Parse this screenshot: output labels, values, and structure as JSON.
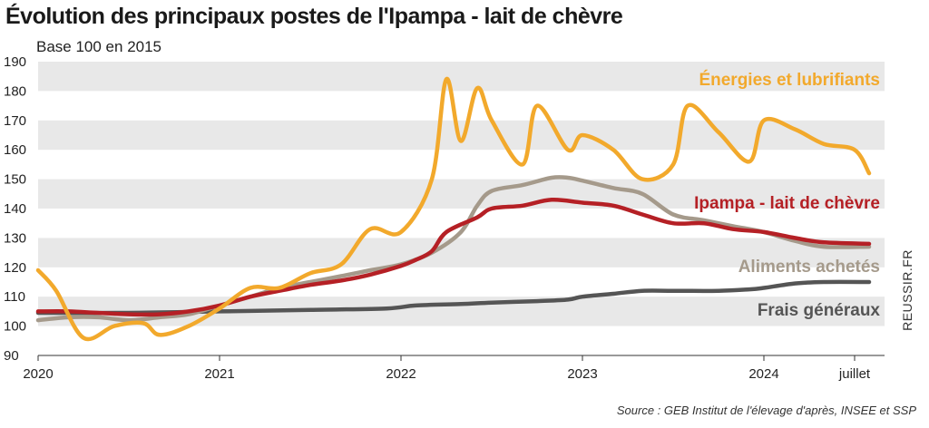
{
  "title": "Évolution des principaux postes de l'Ipampa - lait de chèvre",
  "subtitle": "Base 100 en 2015",
  "credit": "REUSSIR.FR",
  "source": "Source : GEB Institut de l'élevage d'après, INSEE et SSP",
  "chart_data": {
    "type": "line",
    "title": "Évolution des principaux postes de l'Ipampa - lait de chèvre",
    "ylabel": "Base 100 en 2015",
    "ylim": [
      90,
      190
    ],
    "xlim": [
      2020.0,
      2024.6
    ],
    "y_ticks": [
      90,
      100,
      110,
      120,
      130,
      140,
      150,
      160,
      170,
      180,
      190
    ],
    "x_ticks": [
      {
        "x": 2020.0,
        "label": "2020"
      },
      {
        "x": 2021.0,
        "label": "2021"
      },
      {
        "x": 2022.0,
        "label": "2022"
      },
      {
        "x": 2023.0,
        "label": "2023"
      },
      {
        "x": 2024.0,
        "label": "2024"
      },
      {
        "x": 2024.5,
        "label": "juillet"
      }
    ],
    "grid": "alternating horizontal bands",
    "series": [
      {
        "name": "Frais généraux",
        "color": "#555555",
        "x": [
          2020.0,
          2020.5,
          2021.0,
          2021.5,
          2021.92,
          2022.08,
          2022.33,
          2022.5,
          2022.75,
          2022.92,
          2023.0,
          2023.17,
          2023.33,
          2023.5,
          2023.75,
          2023.92,
          2024.0,
          2024.17,
          2024.33,
          2024.58
        ],
        "values": [
          104.5,
          104.5,
          105.0,
          105.5,
          106.0,
          107.0,
          107.5,
          108.0,
          108.5,
          109.0,
          110.0,
          111.0,
          112.0,
          112.0,
          112.0,
          112.5,
          113.0,
          114.5,
          115.0,
          115.0
        ]
      },
      {
        "name": "Aliments achetés",
        "color": "#a59a8b",
        "x": [
          2020.0,
          2020.17,
          2020.33,
          2020.5,
          2020.67,
          2020.83,
          2021.0,
          2021.17,
          2021.33,
          2021.5,
          2021.67,
          2021.83,
          2022.0,
          2022.17,
          2022.33,
          2022.42,
          2022.5,
          2022.67,
          2022.83,
          2022.92,
          2023.0,
          2023.17,
          2023.33,
          2023.5,
          2023.67,
          2023.83,
          2024.0,
          2024.17,
          2024.33,
          2024.58
        ],
        "values": [
          102.0,
          103.0,
          103.0,
          102.0,
          103.0,
          104.0,
          107.0,
          110.0,
          113.0,
          115.0,
          117.0,
          119.0,
          121.0,
          125.0,
          132.0,
          141.0,
          146.0,
          148.0,
          150.5,
          150.5,
          149.5,
          147.0,
          145.0,
          138.0,
          136.0,
          134.0,
          132.0,
          129.0,
          127.0,
          127.0
        ]
      },
      {
        "name": "Ipampa - lait de chèvre",
        "color": "#b52025",
        "x": [
          2020.0,
          2020.17,
          2020.33,
          2020.5,
          2020.67,
          2020.83,
          2021.0,
          2021.17,
          2021.33,
          2021.5,
          2021.67,
          2021.83,
          2022.0,
          2022.08,
          2022.17,
          2022.25,
          2022.42,
          2022.5,
          2022.67,
          2022.83,
          2023.0,
          2023.17,
          2023.33,
          2023.5,
          2023.67,
          2023.83,
          2024.0,
          2024.17,
          2024.33,
          2024.58
        ],
        "values": [
          105.0,
          105.0,
          104.5,
          104.0,
          104.0,
          105.0,
          107.0,
          110.0,
          112.0,
          114.0,
          115.5,
          117.5,
          120.5,
          122.5,
          125.5,
          132.0,
          137.0,
          140.0,
          141.0,
          143.0,
          142.0,
          141.0,
          138.0,
          135.0,
          135.0,
          133.0,
          132.0,
          130.0,
          128.5,
          128.0
        ]
      },
      {
        "name": "Énergies et lubrifiants",
        "color": "#f2a92c",
        "x": [
          2020.0,
          2020.1,
          2020.25,
          2020.42,
          2020.58,
          2020.67,
          2020.83,
          2021.0,
          2021.17,
          2021.33,
          2021.5,
          2021.67,
          2021.83,
          2022.0,
          2022.17,
          2022.25,
          2022.33,
          2022.42,
          2022.5,
          2022.67,
          2022.75,
          2022.92,
          2023.0,
          2023.17,
          2023.33,
          2023.5,
          2023.58,
          2023.75,
          2023.92,
          2024.0,
          2024.17,
          2024.33,
          2024.5,
          2024.58
        ],
        "values": [
          119.0,
          112.0,
          96.0,
          100.0,
          101.0,
          97.0,
          100.0,
          106.0,
          113.0,
          113.0,
          118.0,
          121.0,
          133.0,
          132.0,
          150.0,
          184.0,
          163.0,
          181.0,
          170.0,
          155.0,
          175.0,
          160.0,
          165.0,
          160.0,
          150.0,
          155.0,
          175.0,
          166.0,
          156.0,
          170.0,
          167.0,
          162.0,
          160.0,
          152.0
        ]
      }
    ]
  },
  "labels": {
    "energies": "Énergies et lubrifiants",
    "ipampa": "Ipampa - lait de chèvre",
    "aliments": "Aliments achetés",
    "frais": "Frais généraux"
  }
}
